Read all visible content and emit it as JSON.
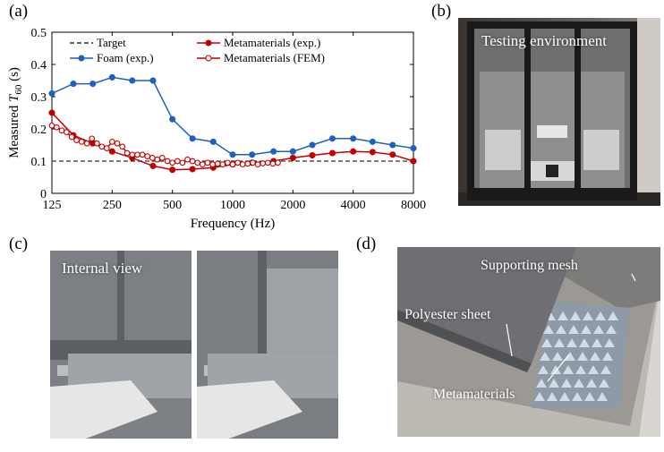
{
  "panels": {
    "a": "(a)",
    "b": "(b)",
    "c": "(c)",
    "d": "(d)"
  },
  "photos": {
    "b_caption": "Testing environment",
    "c_caption": "Internal view",
    "d_labels": {
      "mesh": "Supporting mesh",
      "sheet": "Polyester sheet",
      "meta": "Metamaterials"
    }
  },
  "colors": {
    "foam": "#1f5fbf",
    "exp": "#c00000",
    "fem": "#c00000",
    "target": "#333333"
  },
  "chart_data": {
    "type": "line",
    "ylabel_main": "Measured ",
    "ylabel_T": "T",
    "ylabel_sub": "60",
    "ylabel_unit": " (s)",
    "xlabel": "Frequency (Hz)",
    "x_scale": "log2",
    "xlim": [
      125,
      8000
    ],
    "ylim": [
      0,
      0.5
    ],
    "x_ticks": [
      125,
      250,
      500,
      1000,
      2000,
      4000,
      8000
    ],
    "x_tick_labels": [
      "125",
      "250",
      "500",
      "1000",
      "2000",
      "4000",
      "8000"
    ],
    "y_ticks": [
      0,
      0.1,
      0.2,
      0.3,
      0.4,
      0.5
    ],
    "y_tick_labels": [
      "0",
      "0.1",
      "0.2",
      "0.3",
      "0.4",
      "0.5"
    ],
    "legend": [
      "Target",
      "Foam (exp.)",
      "Metamaterials (exp.)",
      "Metamaterials (FEM)"
    ],
    "series": [
      {
        "name": "Target",
        "style": "dashed",
        "x": [
          125,
          8000
        ],
        "y": [
          0.1,
          0.1
        ]
      },
      {
        "name": "Foam (exp.)",
        "style": "filled-circle",
        "x": [
          125,
          160,
          200,
          250,
          315,
          400,
          500,
          630,
          800,
          1000,
          1250,
          1600,
          2000,
          2500,
          3150,
          4000,
          5000,
          6300,
          8000
        ],
        "y": [
          0.31,
          0.34,
          0.34,
          0.36,
          0.35,
          0.35,
          0.23,
          0.17,
          0.16,
          0.12,
          0.12,
          0.13,
          0.13,
          0.15,
          0.17,
          0.17,
          0.16,
          0.15,
          0.14
        ]
      },
      {
        "name": "Metamaterials (exp.)",
        "style": "filled-circle",
        "x": [
          125,
          160,
          200,
          250,
          315,
          400,
          500,
          630,
          800,
          1000,
          1250,
          1600,
          2000,
          2500,
          3150,
          4000,
          5000,
          6300,
          8000
        ],
        "y": [
          0.25,
          0.18,
          0.155,
          0.13,
          0.11,
          0.085,
          0.073,
          0.075,
          0.08,
          0.09,
          0.095,
          0.1,
          0.11,
          0.118,
          0.125,
          0.13,
          0.128,
          0.12,
          0.1
        ]
      },
      {
        "name": "Metamaterials (FEM)",
        "style": "open-circle",
        "x": [
          125,
          132,
          140,
          148,
          157,
          166,
          176,
          187,
          198,
          210,
          222,
          235,
          250,
          265,
          281,
          297,
          315,
          334,
          354,
          375,
          397,
          420,
          445,
          472,
          500,
          530,
          561,
          595,
          630,
          667,
          707,
          749,
          794,
          841,
          891,
          944,
          1000,
          1060,
          1122,
          1189,
          1260,
          1335,
          1414,
          1498,
          1587,
          1682
        ],
        "y": [
          0.21,
          0.205,
          0.195,
          0.19,
          0.175,
          0.165,
          0.16,
          0.155,
          0.17,
          0.155,
          0.145,
          0.14,
          0.16,
          0.155,
          0.145,
          0.125,
          0.12,
          0.12,
          0.12,
          0.115,
          0.11,
          0.105,
          0.11,
          0.1,
          0.095,
          0.1,
          0.095,
          0.105,
          0.1,
          0.095,
          0.09,
          0.095,
          0.09,
          0.092,
          0.09,
          0.095,
          0.09,
          0.095,
          0.09,
          0.092,
          0.095,
          0.09,
          0.093,
          0.095,
          0.092,
          0.095
        ]
      }
    ]
  }
}
